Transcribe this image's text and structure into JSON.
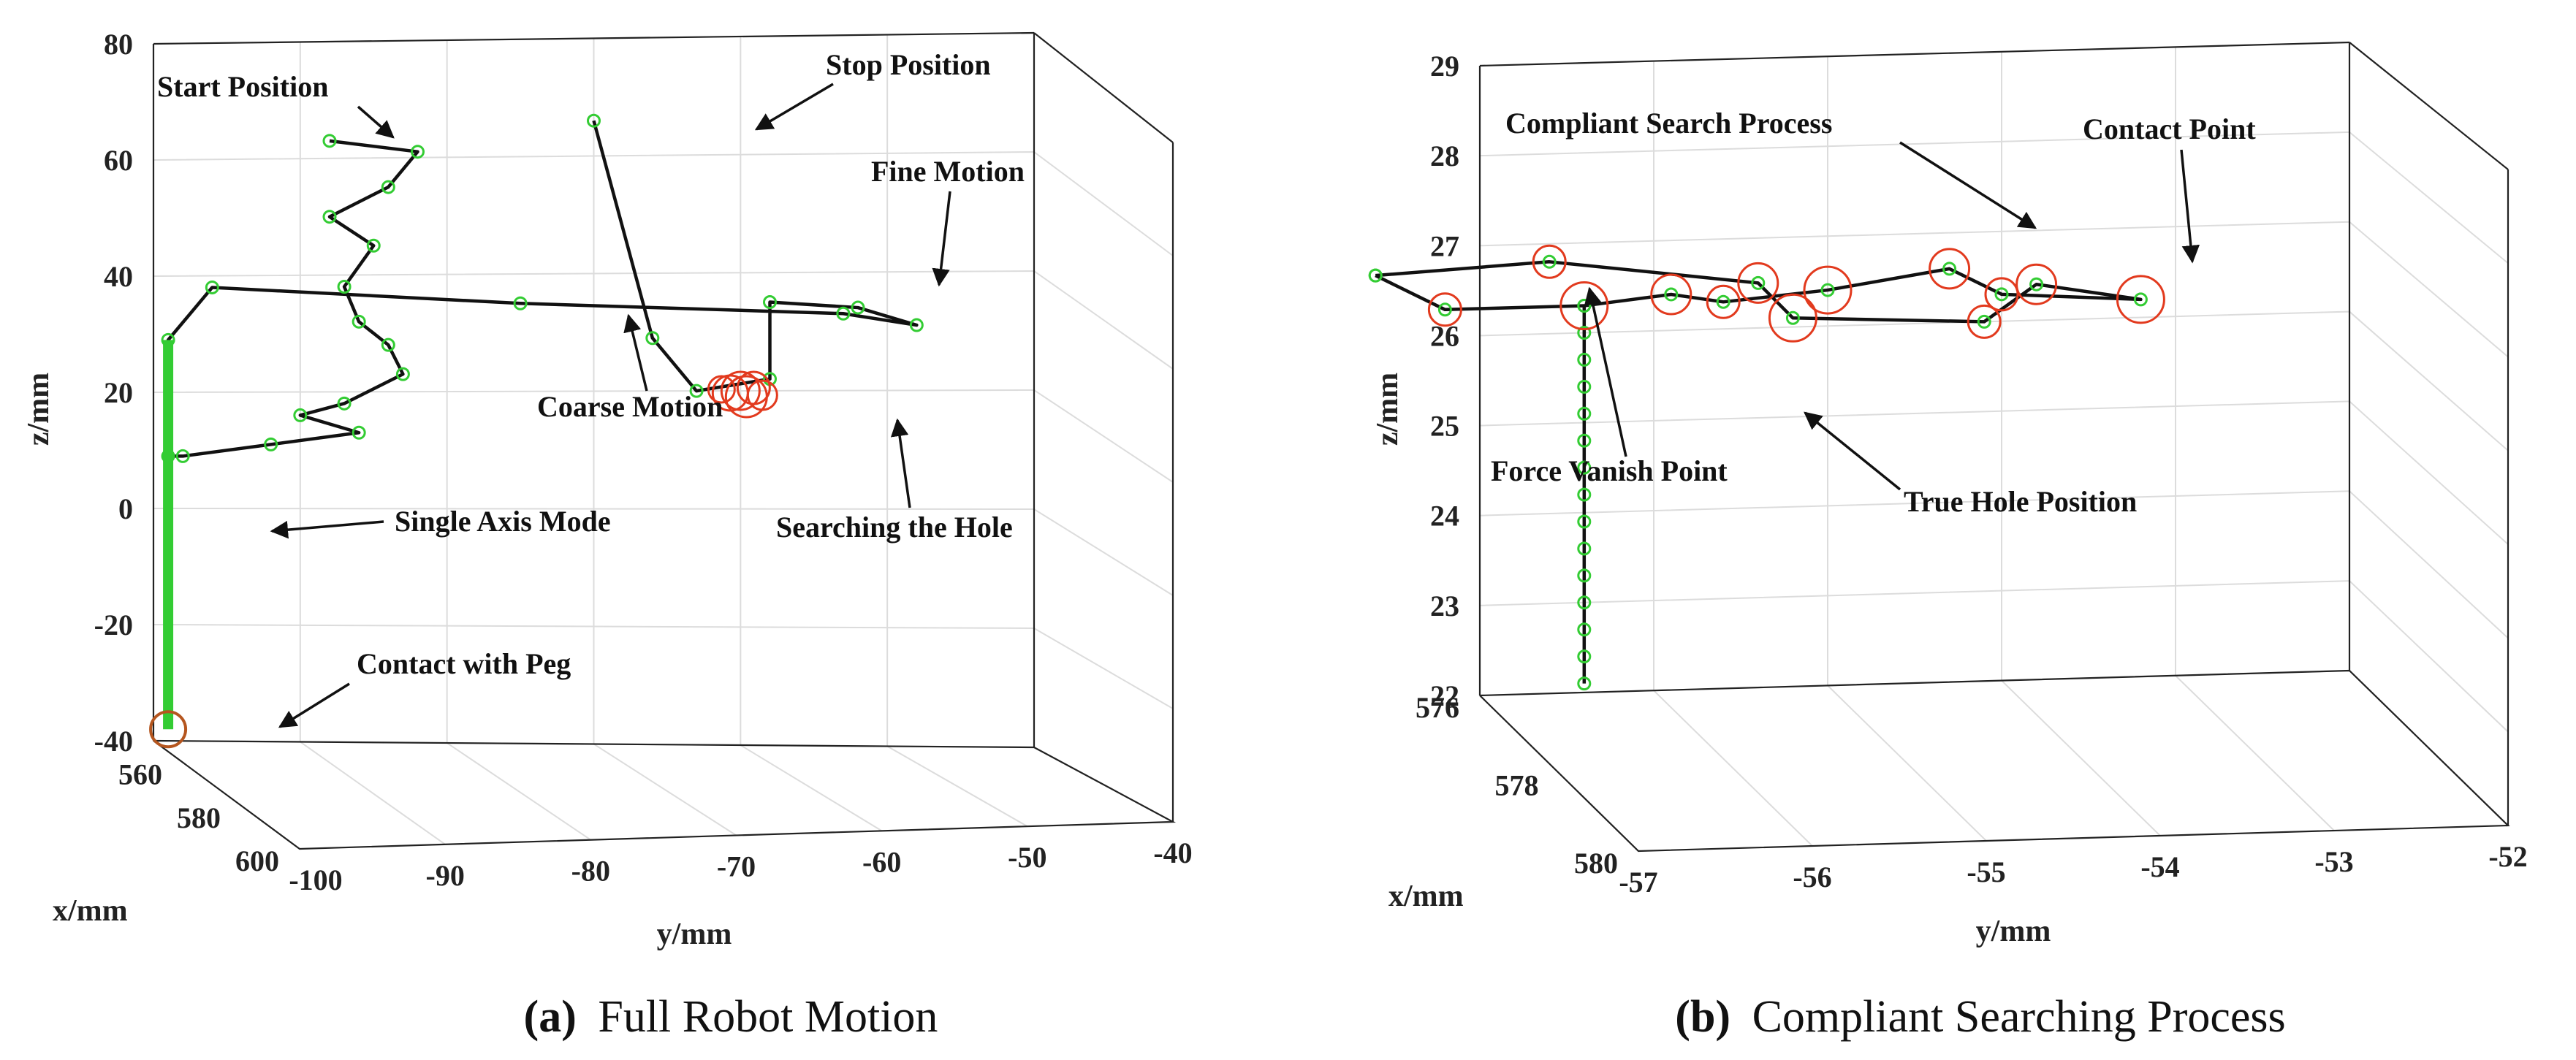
{
  "colors": {
    "path": "#111111",
    "green_marker": "#33cc33",
    "red_marker": "#e23a1e",
    "dark_red_marker": "#b5561f"
  },
  "chart_data": [
    {
      "type": "scatter",
      "subtype": "3d-trajectory",
      "caption_label": "(a)",
      "caption_text": "Full Robot Motion",
      "xlabel": "x/mm",
      "ylabel": "y/mm",
      "zlabel": "z/mm",
      "xlim": [
        550,
        600
      ],
      "ylim": [
        -100,
        -40
      ],
      "zlim": [
        -40,
        80
      ],
      "x_ticks": [
        "560",
        "580",
        "600"
      ],
      "y_ticks": [
        "-100",
        "-90",
        "-80",
        "-70",
        "-60",
        "-50",
        "-40"
      ],
      "z_ticks": [
        "-40",
        "-20",
        "0",
        "20",
        "40",
        "60",
        "80"
      ],
      "grid": true,
      "annotations": [
        "Start Position",
        "Stop Position",
        "Fine Motion",
        "Coarse Motion",
        "Searching the Hole",
        "Single Axis Mode",
        "Contact with Peg"
      ],
      "trajectory_yz": [
        {
          "y": -88,
          "z": 63
        },
        {
          "y": -82,
          "z": 61
        },
        {
          "y": -84,
          "z": 55
        },
        {
          "y": -88,
          "z": 50
        },
        {
          "y": -85,
          "z": 45
        },
        {
          "y": -87,
          "z": 38
        },
        {
          "y": -86,
          "z": 32
        },
        {
          "y": -84,
          "z": 28
        },
        {
          "y": -83,
          "z": 23
        },
        {
          "y": -87,
          "z": 18
        },
        {
          "y": -90,
          "z": 16
        },
        {
          "y": -86,
          "z": 13
        },
        {
          "y": -92,
          "z": 11
        },
        {
          "y": -98,
          "z": 9
        },
        {
          "y": -99,
          "z": 9
        },
        {
          "y": -99,
          "z": 29
        },
        {
          "y": -96,
          "z": 38
        },
        {
          "y": -75,
          "z": 35
        },
        {
          "y": -53,
          "z": 33
        },
        {
          "y": -48,
          "z": 31
        },
        {
          "y": -52,
          "z": 34
        },
        {
          "y": -58,
          "z": 35
        },
        {
          "y": -58,
          "z": 22
        },
        {
          "y": -63,
          "z": 20
        },
        {
          "y": -66,
          "z": 29
        },
        {
          "y": -70,
          "z": 66
        }
      ],
      "contact_point": {
        "y": -99,
        "z": -38
      }
    },
    {
      "type": "scatter",
      "subtype": "3d-trajectory",
      "caption_label": "(b)",
      "caption_text": "Compliant Searching Process",
      "xlabel": "x/mm",
      "ylabel": "y/mm",
      "zlabel": "z/mm",
      "xlim": [
        576,
        580
      ],
      "ylim": [
        -57,
        -52
      ],
      "zlim": [
        22,
        29
      ],
      "x_ticks": [
        "576",
        "578",
        "580"
      ],
      "y_ticks": [
        "-57",
        "-56",
        "-55",
        "-54",
        "-53",
        "-52"
      ],
      "z_ticks": [
        "22",
        "23",
        "24",
        "25",
        "26",
        "27",
        "28",
        "29"
      ],
      "grid": true,
      "annotations": [
        "Compliant Search Process",
        "Contact Point",
        "Force Vanish Point",
        "True Hole Position"
      ],
      "trajectory_yz": [
        {
          "y": -57.6,
          "z": 26.7
        },
        {
          "y": -56.6,
          "z": 26.8
        },
        {
          "y": -55.4,
          "z": 26.5
        },
        {
          "y": -55.2,
          "z": 26.1
        },
        {
          "y": -54.1,
          "z": 26.0
        },
        {
          "y": -53.8,
          "z": 26.4
        },
        {
          "y": -53.2,
          "z": 26.2
        },
        {
          "y": -54.0,
          "z": 26.3
        },
        {
          "y": -54.3,
          "z": 26.6
        },
        {
          "y": -55.0,
          "z": 26.4
        },
        {
          "y": -55.6,
          "z": 26.3
        },
        {
          "y": -55.9,
          "z": 26.4
        },
        {
          "y": -56.4,
          "z": 26.3
        },
        {
          "y": -57.2,
          "z": 26.3
        },
        {
          "y": -57.6,
          "z": 26.7
        }
      ],
      "vertical_yz": {
        "y": -56.4,
        "z_top": 26.3,
        "z_bottom": 22.1
      }
    }
  ],
  "texts": {
    "a": {
      "ann_start": "Start Position",
      "ann_stop": "Stop Position",
      "ann_fine": "Fine Motion",
      "ann_coarse": "Coarse Motion",
      "ann_search": "Searching the Hole",
      "ann_single": "Single Axis Mode",
      "ann_contact": "Contact with Peg"
    },
    "b": {
      "ann_compliant": "Compliant Search Process",
      "ann_contact": "Contact Point",
      "ann_vanish": "Force Vanish Point",
      "ann_true": "True Hole Position"
    }
  }
}
